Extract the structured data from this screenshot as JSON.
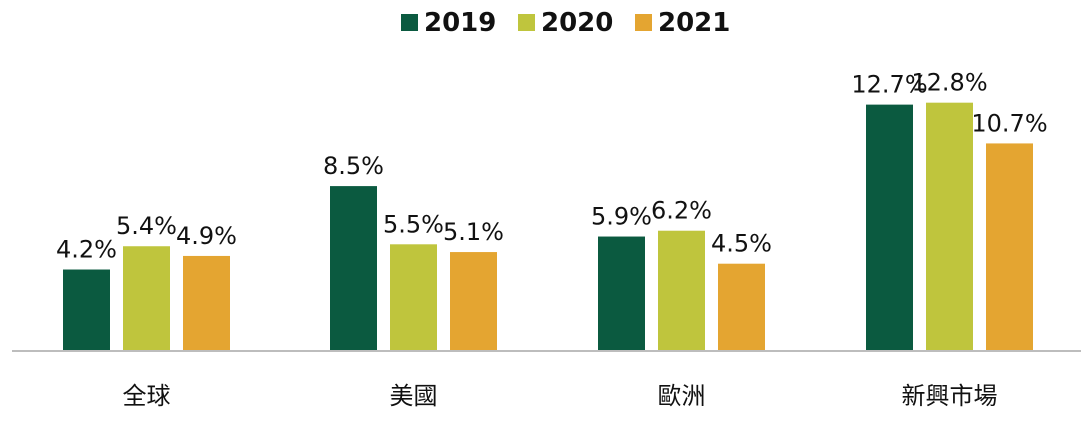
{
  "chart_data": {
    "type": "bar",
    "title": "",
    "xlabel": "",
    "ylabel": "",
    "categories": [
      "全球",
      "美國",
      "歐洲",
      "新興市場"
    ],
    "series": [
      {
        "name": "2019",
        "color": "#0b5a40",
        "values": [
          4.2,
          8.5,
          5.9,
          12.7
        ],
        "labels": [
          "4.2%",
          "8.5%",
          "5.9%",
          "12.7%"
        ]
      },
      {
        "name": "2020",
        "color": "#bfc53d",
        "values": [
          5.4,
          5.5,
          6.2,
          12.8
        ],
        "labels": [
          "5.4%",
          "5.5%",
          "6.2%",
          "12.8%"
        ]
      },
      {
        "name": "2021",
        "color": "#e4a531",
        "values": [
          4.9,
          5.1,
          4.5,
          10.7
        ],
        "labels": [
          "4.9%",
          "5.1%",
          "4.5%",
          "10.7%"
        ]
      }
    ],
    "ylim": [
      0,
      13
    ],
    "grid": false,
    "legend_position": "top-center",
    "baseline_color": "#bdbdbd"
  }
}
